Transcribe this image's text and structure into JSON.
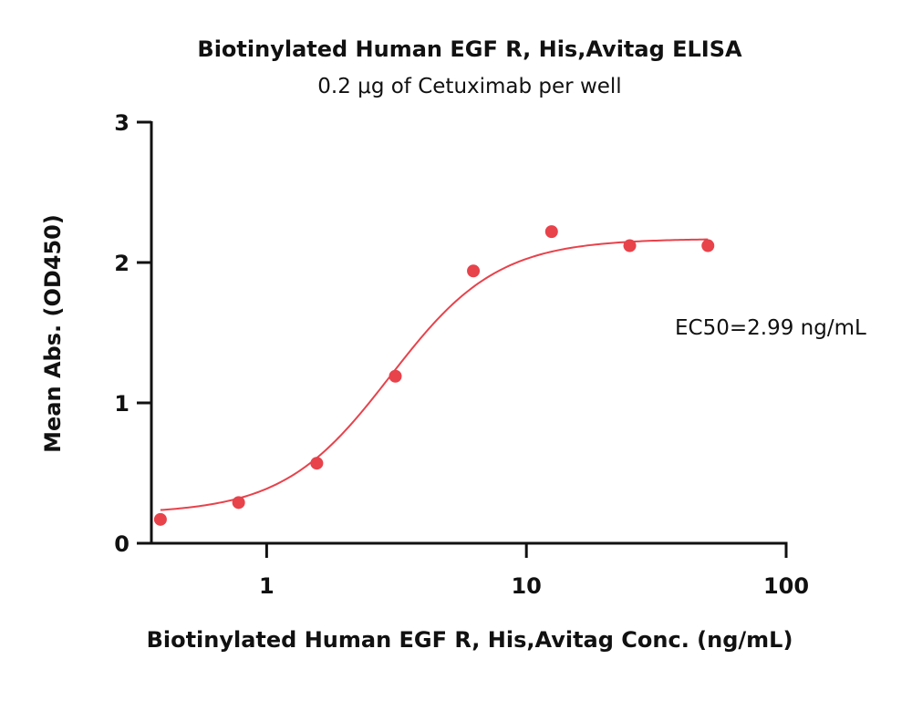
{
  "chart_data": {
    "type": "scatter",
    "title": "Biotinylated Human EGF R, His,Avitag ELISA",
    "subtitle": "0.2 μg of Cetuximab per well",
    "xlabel": "Biotinylated Human EGF R, His,Avitag Conc. (ng/mL)",
    "ylabel": "Mean Abs. (OD450)",
    "xscale": "log",
    "xlim": [
      0.36,
      100
    ],
    "ylim": [
      0,
      3
    ],
    "xticks": [
      1,
      10,
      100
    ],
    "xtick_labels": [
      "1",
      "10",
      "100"
    ],
    "yticks": [
      0,
      1,
      2,
      3
    ],
    "ytick_labels": [
      "0",
      "1",
      "2",
      "3"
    ],
    "grid": false,
    "annotation": "EC50=2.99 ng/mL",
    "color": "#e8424b",
    "points": {
      "x": [
        0.39,
        0.78,
        1.56,
        3.13,
        6.25,
        12.5,
        25,
        50
      ],
      "y": [
        0.17,
        0.29,
        0.57,
        1.19,
        1.94,
        2.22,
        2.12,
        2.12
      ]
    },
    "fit": {
      "model": "4PL",
      "bottom": 0.21,
      "top": 2.17,
      "ec50": 2.99,
      "hill": 2.1,
      "x_range": [
        0.39,
        50
      ]
    }
  }
}
